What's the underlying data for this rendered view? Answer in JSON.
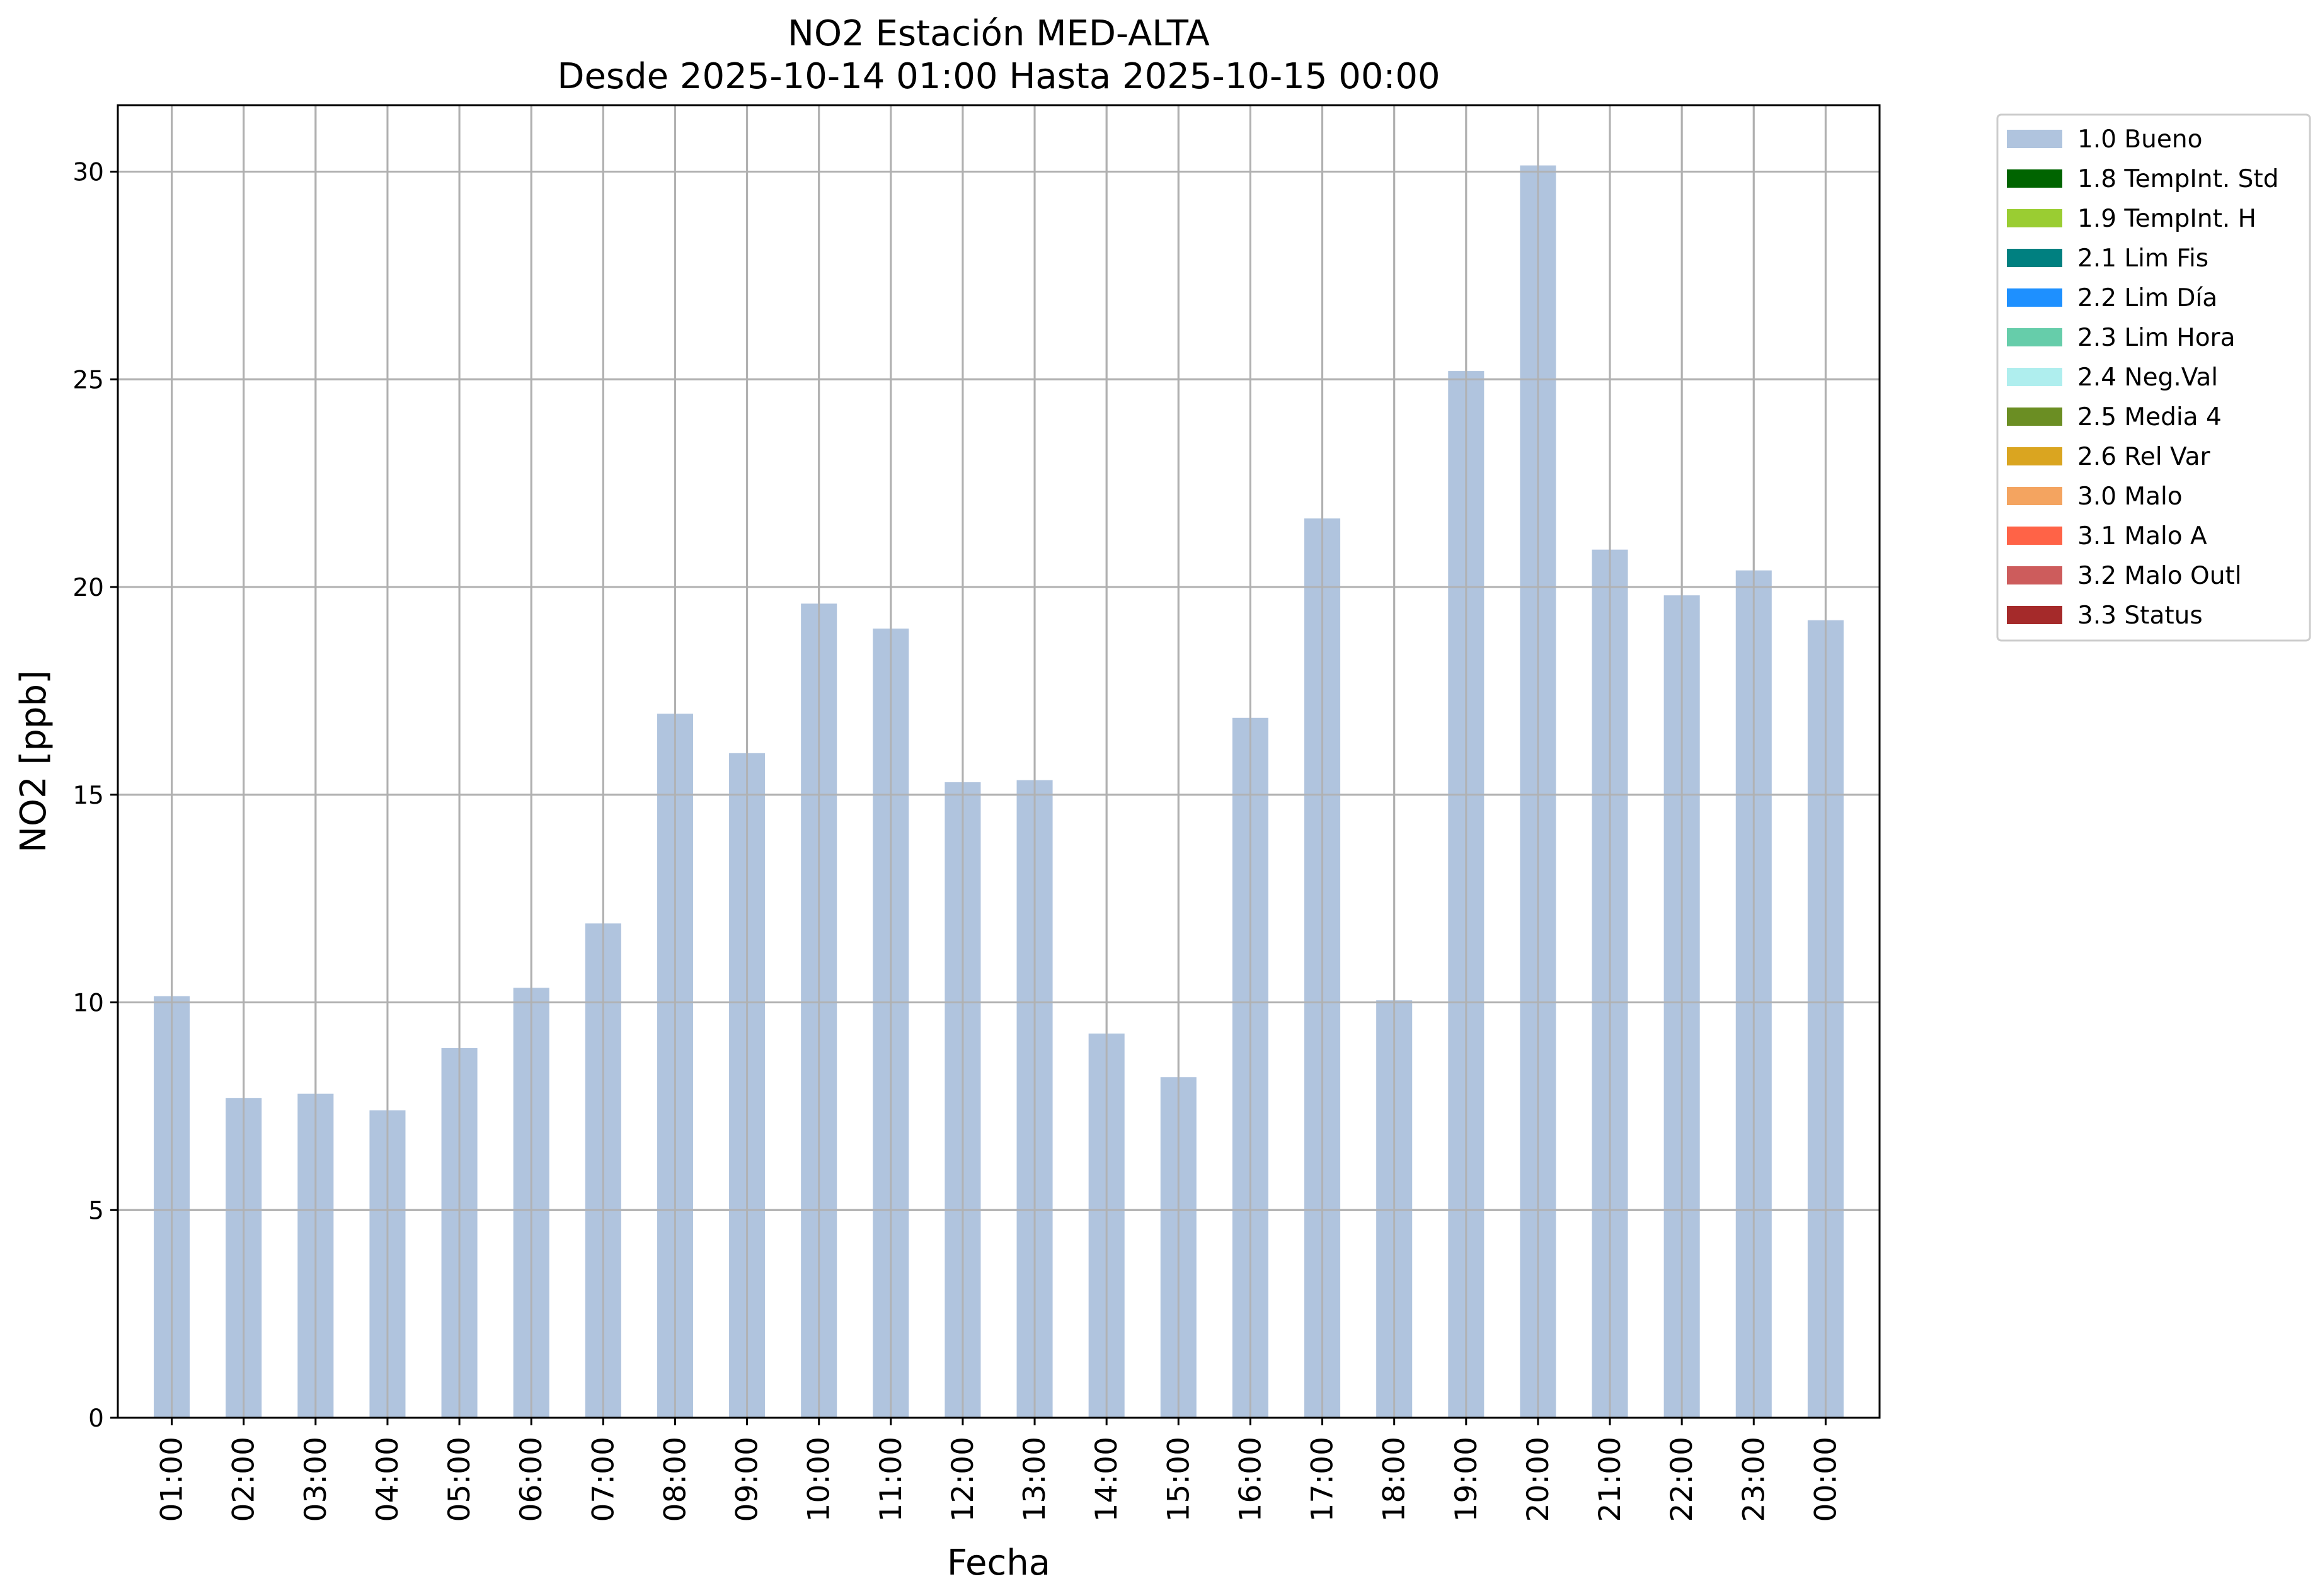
{
  "chart_data": {
    "type": "bar",
    "title": "NO2 Estación MED-ALTA",
    "subtitle": "Desde 2025-10-14 01:00 Hasta 2025-10-15 00:00",
    "xlabel": "Fecha",
    "ylabel": "NO2 [ppb]",
    "ylim": [
      0,
      31.6
    ],
    "yticks": [
      0,
      5,
      10,
      15,
      20,
      25,
      30
    ],
    "grid": true,
    "legend_position": "outside-top-right",
    "categories": [
      "01:00",
      "02:00",
      "03:00",
      "04:00",
      "05:00",
      "06:00",
      "07:00",
      "08:00",
      "09:00",
      "10:00",
      "11:00",
      "12:00",
      "13:00",
      "14:00",
      "15:00",
      "16:00",
      "17:00",
      "18:00",
      "19:00",
      "20:00",
      "21:00",
      "22:00",
      "23:00",
      "00:00"
    ],
    "series": [
      {
        "name": "1.0 Bueno",
        "color": "#b0c4de",
        "values": [
          10.15,
          7.7,
          7.8,
          7.4,
          8.9,
          10.35,
          11.9,
          16.95,
          16.0,
          19.6,
          19.0,
          15.3,
          15.35,
          9.25,
          8.2,
          16.85,
          21.65,
          10.05,
          25.2,
          30.15,
          20.9,
          19.8,
          20.4,
          19.2
        ]
      }
    ],
    "legend": [
      {
        "label": "1.0 Bueno",
        "color": "#b0c4de"
      },
      {
        "label": "1.8 TempInt. Std",
        "color": "#006400"
      },
      {
        "label": "1.9 TempInt. H",
        "color": "#9acd32"
      },
      {
        "label": "2.1 Lim Fis",
        "color": "#008080"
      },
      {
        "label": "2.2 Lim Día",
        "color": "#1e90ff"
      },
      {
        "label": "2.3 Lim Hora",
        "color": "#66cdaa"
      },
      {
        "label": "2.4 Neg.Val",
        "color": "#afeeee"
      },
      {
        "label": "2.5 Media 4",
        "color": "#6b8e23"
      },
      {
        "label": "2.6 Rel Var",
        "color": "#daa520"
      },
      {
        "label": "3.0 Malo",
        "color": "#f4a460"
      },
      {
        "label": "3.1 Malo A",
        "color": "#ff6347"
      },
      {
        "label": "3.2 Malo Outl",
        "color": "#cd5c5c"
      },
      {
        "label": "3.3 Status",
        "color": "#a52a2a"
      }
    ]
  }
}
